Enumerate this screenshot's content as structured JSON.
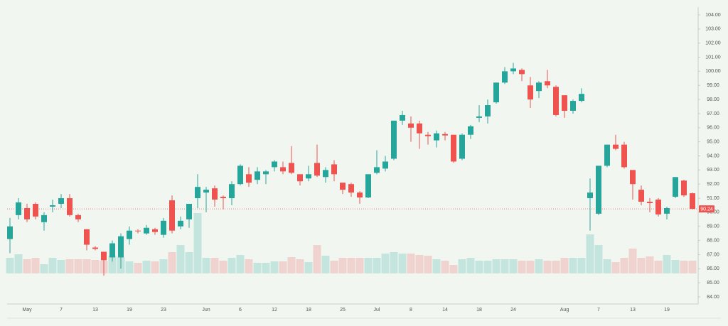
{
  "chart_data": {
    "type": "candlestick",
    "categories": [
      null,
      null,
      "May",
      null,
      null,
      null,
      "7",
      null,
      null,
      null,
      "13",
      null,
      null,
      null,
      "19",
      null,
      null,
      null,
      "23",
      null,
      null,
      null,
      null,
      "Jun",
      null,
      null,
      null,
      "6",
      null,
      null,
      null,
      "12",
      null,
      null,
      null,
      "18",
      null,
      null,
      null,
      "25",
      null,
      null,
      null,
      "Jul",
      null,
      null,
      null,
      "8",
      null,
      null,
      null,
      "14",
      null,
      null,
      null,
      "18",
      null,
      null,
      null,
      "24",
      null,
      null,
      null,
      null,
      null,
      "Aug",
      null,
      null,
      null,
      "7",
      null,
      null,
      null,
      "13",
      null,
      null,
      null,
      "19",
      null,
      null,
      null
    ],
    "open": [
      88.1,
      89.8,
      90.3,
      90.6,
      89.3,
      90.4,
      90.6,
      91.0,
      89.8,
      88.8,
      87.5,
      87.2,
      86.8,
      86.8,
      88.1,
      88.7,
      88.5,
      88.8,
      88.4,
      90.85,
      89.0,
      89.5,
      91.0,
      91.4,
      91.7,
      91.1,
      91.0,
      92.0,
      92.7,
      92.3,
      92.7,
      93.2,
      93.2,
      93.5,
      92.7,
      92.4,
      93.5,
      92.5,
      93.4,
      92.1,
      92.0,
      91.4,
      91.05,
      92.8,
      93.1,
      93.8,
      96.5,
      96.3,
      96.3,
      95.5,
      95.1,
      95.55,
      95.5,
      93.8,
      95.5,
      96.7,
      96.8,
      97.8,
      99.2,
      100.0,
      100.1,
      99.0,
      98.6,
      99.3,
      98.9,
      98.3,
      97.2,
      97.9,
      91.0,
      89.9,
      93.3,
      94.8,
      94.8,
      93.0,
      91.6,
      90.75,
      90.9,
      89.9,
      91.1,
      92.25,
      91.35
    ],
    "high": [
      89.6,
      91.0,
      90.6,
      90.7,
      90.0,
      90.9,
      91.3,
      91.3,
      89.9,
      88.8,
      87.6,
      87.2,
      88.0,
      88.5,
      89.0,
      88.8,
      89.1,
      88.9,
      89.6,
      91.2,
      89.7,
      90.6,
      92.7,
      91.8,
      91.9,
      91.2,
      92.2,
      93.4,
      93.2,
      93.2,
      93.0,
      93.7,
      93.6,
      94.7,
      92.7,
      93.3,
      94.8,
      93.2,
      93.7,
      92.1,
      92.1,
      91.5,
      92.7,
      94.4,
      94.0,
      96.5,
      97.2,
      96.8,
      96.5,
      95.7,
      95.8,
      95.7,
      95.5,
      95.6,
      96.2,
      97.6,
      98.0,
      99.2,
      100.3,
      100.6,
      100.2,
      99.6,
      99.3,
      100.1,
      99.0,
      98.3,
      98.0,
      98.8,
      92.4,
      93.3,
      94.8,
      95.5,
      95.0,
      93.0,
      91.9,
      91.0,
      91.0,
      90.4,
      92.5,
      92.3,
      91.4
    ],
    "low": [
      87.1,
      89.5,
      89.3,
      89.5,
      88.7,
      90.0,
      90.3,
      89.7,
      89.3,
      87.3,
      87.3,
      85.5,
      86.5,
      86.0,
      87.7,
      88.5,
      88.4,
      88.4,
      88.2,
      88.5,
      88.8,
      88.9,
      90.3,
      90.0,
      90.4,
      90.2,
      90.5,
      91.9,
      91.8,
      92.0,
      92.0,
      92.9,
      92.7,
      92.7,
      91.9,
      92.2,
      92.5,
      92.1,
      92.2,
      91.3,
      91.1,
      90.6,
      91.0,
      92.7,
      92.9,
      93.7,
      96.2,
      95.0,
      94.5,
      94.8,
      94.6,
      95.1,
      93.5,
      93.7,
      95.2,
      96.4,
      96.3,
      97.7,
      99.1,
      99.8,
      99.3,
      97.4,
      98.1,
      98.8,
      96.8,
      96.7,
      97.0,
      97.8,
      88.7,
      89.8,
      93.2,
      94.4,
      93.1,
      90.9,
      90.5,
      90.0,
      89.7,
      89.5,
      91.0,
      91.1,
      90.2
    ],
    "close": [
      89.0,
      90.7,
      89.5,
      89.7,
      89.8,
      90.5,
      91.0,
      89.8,
      89.5,
      87.7,
      87.4,
      86.6,
      87.8,
      88.3,
      88.7,
      88.65,
      88.9,
      88.6,
      89.4,
      88.7,
      89.4,
      90.6,
      91.8,
      91.6,
      90.9,
      91.0,
      92.0,
      93.3,
      92.1,
      92.9,
      92.9,
      93.6,
      92.9,
      92.8,
      92.2,
      92.7,
      92.6,
      93.0,
      92.7,
      91.6,
      91.4,
      91.05,
      92.7,
      93.2,
      93.6,
      96.5,
      96.9,
      96.0,
      95.6,
      95.4,
      95.6,
      95.45,
      93.6,
      95.5,
      96.1,
      96.8,
      97.6,
      99.2,
      100.0,
      100.2,
      99.8,
      98.0,
      99.2,
      99.0,
      96.9,
      97.2,
      97.9,
      98.4,
      91.4,
      93.3,
      94.8,
      94.5,
      93.2,
      92.0,
      90.75,
      90.65,
      89.85,
      90.3,
      92.5,
      91.2,
      90.24
    ],
    "volume": [
      22,
      27,
      20,
      22,
      13,
      22,
      19,
      20,
      20,
      20,
      19,
      18,
      25,
      23,
      17,
      15,
      18,
      17,
      20,
      30,
      40,
      30,
      85,
      22,
      22,
      18,
      22,
      26,
      20,
      15,
      15,
      17,
      17,
      23,
      20,
      16,
      40,
      25,
      18,
      22,
      22,
      22,
      22,
      22,
      28,
      30,
      28,
      28,
      26,
      25,
      20,
      18,
      12,
      20,
      22,
      18,
      18,
      20,
      20,
      20,
      18,
      18,
      20,
      18,
      18,
      22,
      22,
      22,
      55,
      40,
      20,
      16,
      22,
      35,
      22,
      24,
      18,
      26,
      19,
      18,
      18
    ],
    "up_color": "#26a69a",
    "down_color": "#ef5350",
    "last_price": 90.24,
    "ylim": [
      84,
      104
    ],
    "yticks": [
      {
        "value": 84,
        "label": "84.00"
      },
      {
        "value": 85,
        "label": "85.00"
      },
      {
        "value": 86,
        "label": "86.00"
      },
      {
        "value": 87,
        "label": "87.00"
      },
      {
        "value": 88,
        "label": "88.00"
      },
      {
        "value": 89,
        "label": "89.00"
      },
      {
        "value": 90,
        "label": "90.00"
      },
      {
        "value": 91,
        "label": "91.00"
      },
      {
        "value": 92,
        "label": "92.00"
      },
      {
        "value": 93,
        "label": "93.00"
      },
      {
        "value": 94,
        "label": "94.00"
      },
      {
        "value": 95,
        "label": "95.00"
      },
      {
        "value": 96,
        "label": "96.00"
      },
      {
        "value": 97,
        "label": "97.00"
      },
      {
        "value": 98,
        "label": "98.00"
      },
      {
        "value": 99,
        "label": "99.00"
      },
      {
        "value": 100,
        "label": "100.00"
      },
      {
        "value": 101,
        "label": "101.00"
      },
      {
        "value": 102,
        "label": "102.00"
      },
      {
        "value": 103,
        "label": "103.00"
      },
      {
        "value": 104,
        "label": "104.00"
      }
    ],
    "grid": false
  }
}
